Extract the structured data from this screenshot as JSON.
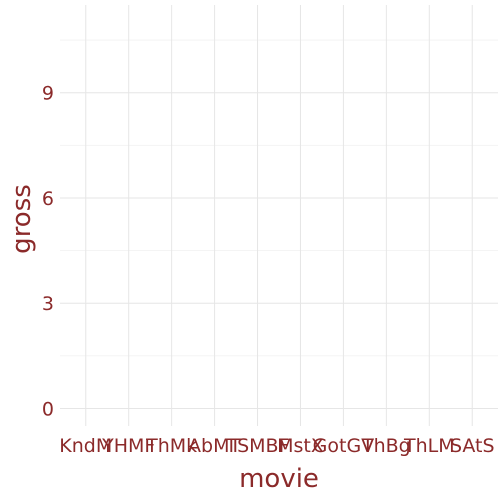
{
  "chart_data": {
    "type": "bar",
    "categories": [
      "KndM",
      "YHMF",
      "ThMk",
      "AbMT",
      "TSMBF",
      "MstX",
      "GotGV",
      "ThBg",
      "ThLM",
      "SAtS"
    ],
    "values": [
      0,
      0,
      0,
      0,
      0,
      0,
      0,
      0,
      0,
      0
    ],
    "xlabel": "movie",
    "ylabel": "gross",
    "yticks": [
      0,
      3,
      6,
      9
    ],
    "ylim": [
      -0.5,
      11.5
    ],
    "grid": true,
    "colors": {
      "text": "#8b2a2a",
      "grid_major": "#e6e6e6",
      "grid_minor": "#f2f2f2",
      "background": "#ffffff"
    }
  }
}
